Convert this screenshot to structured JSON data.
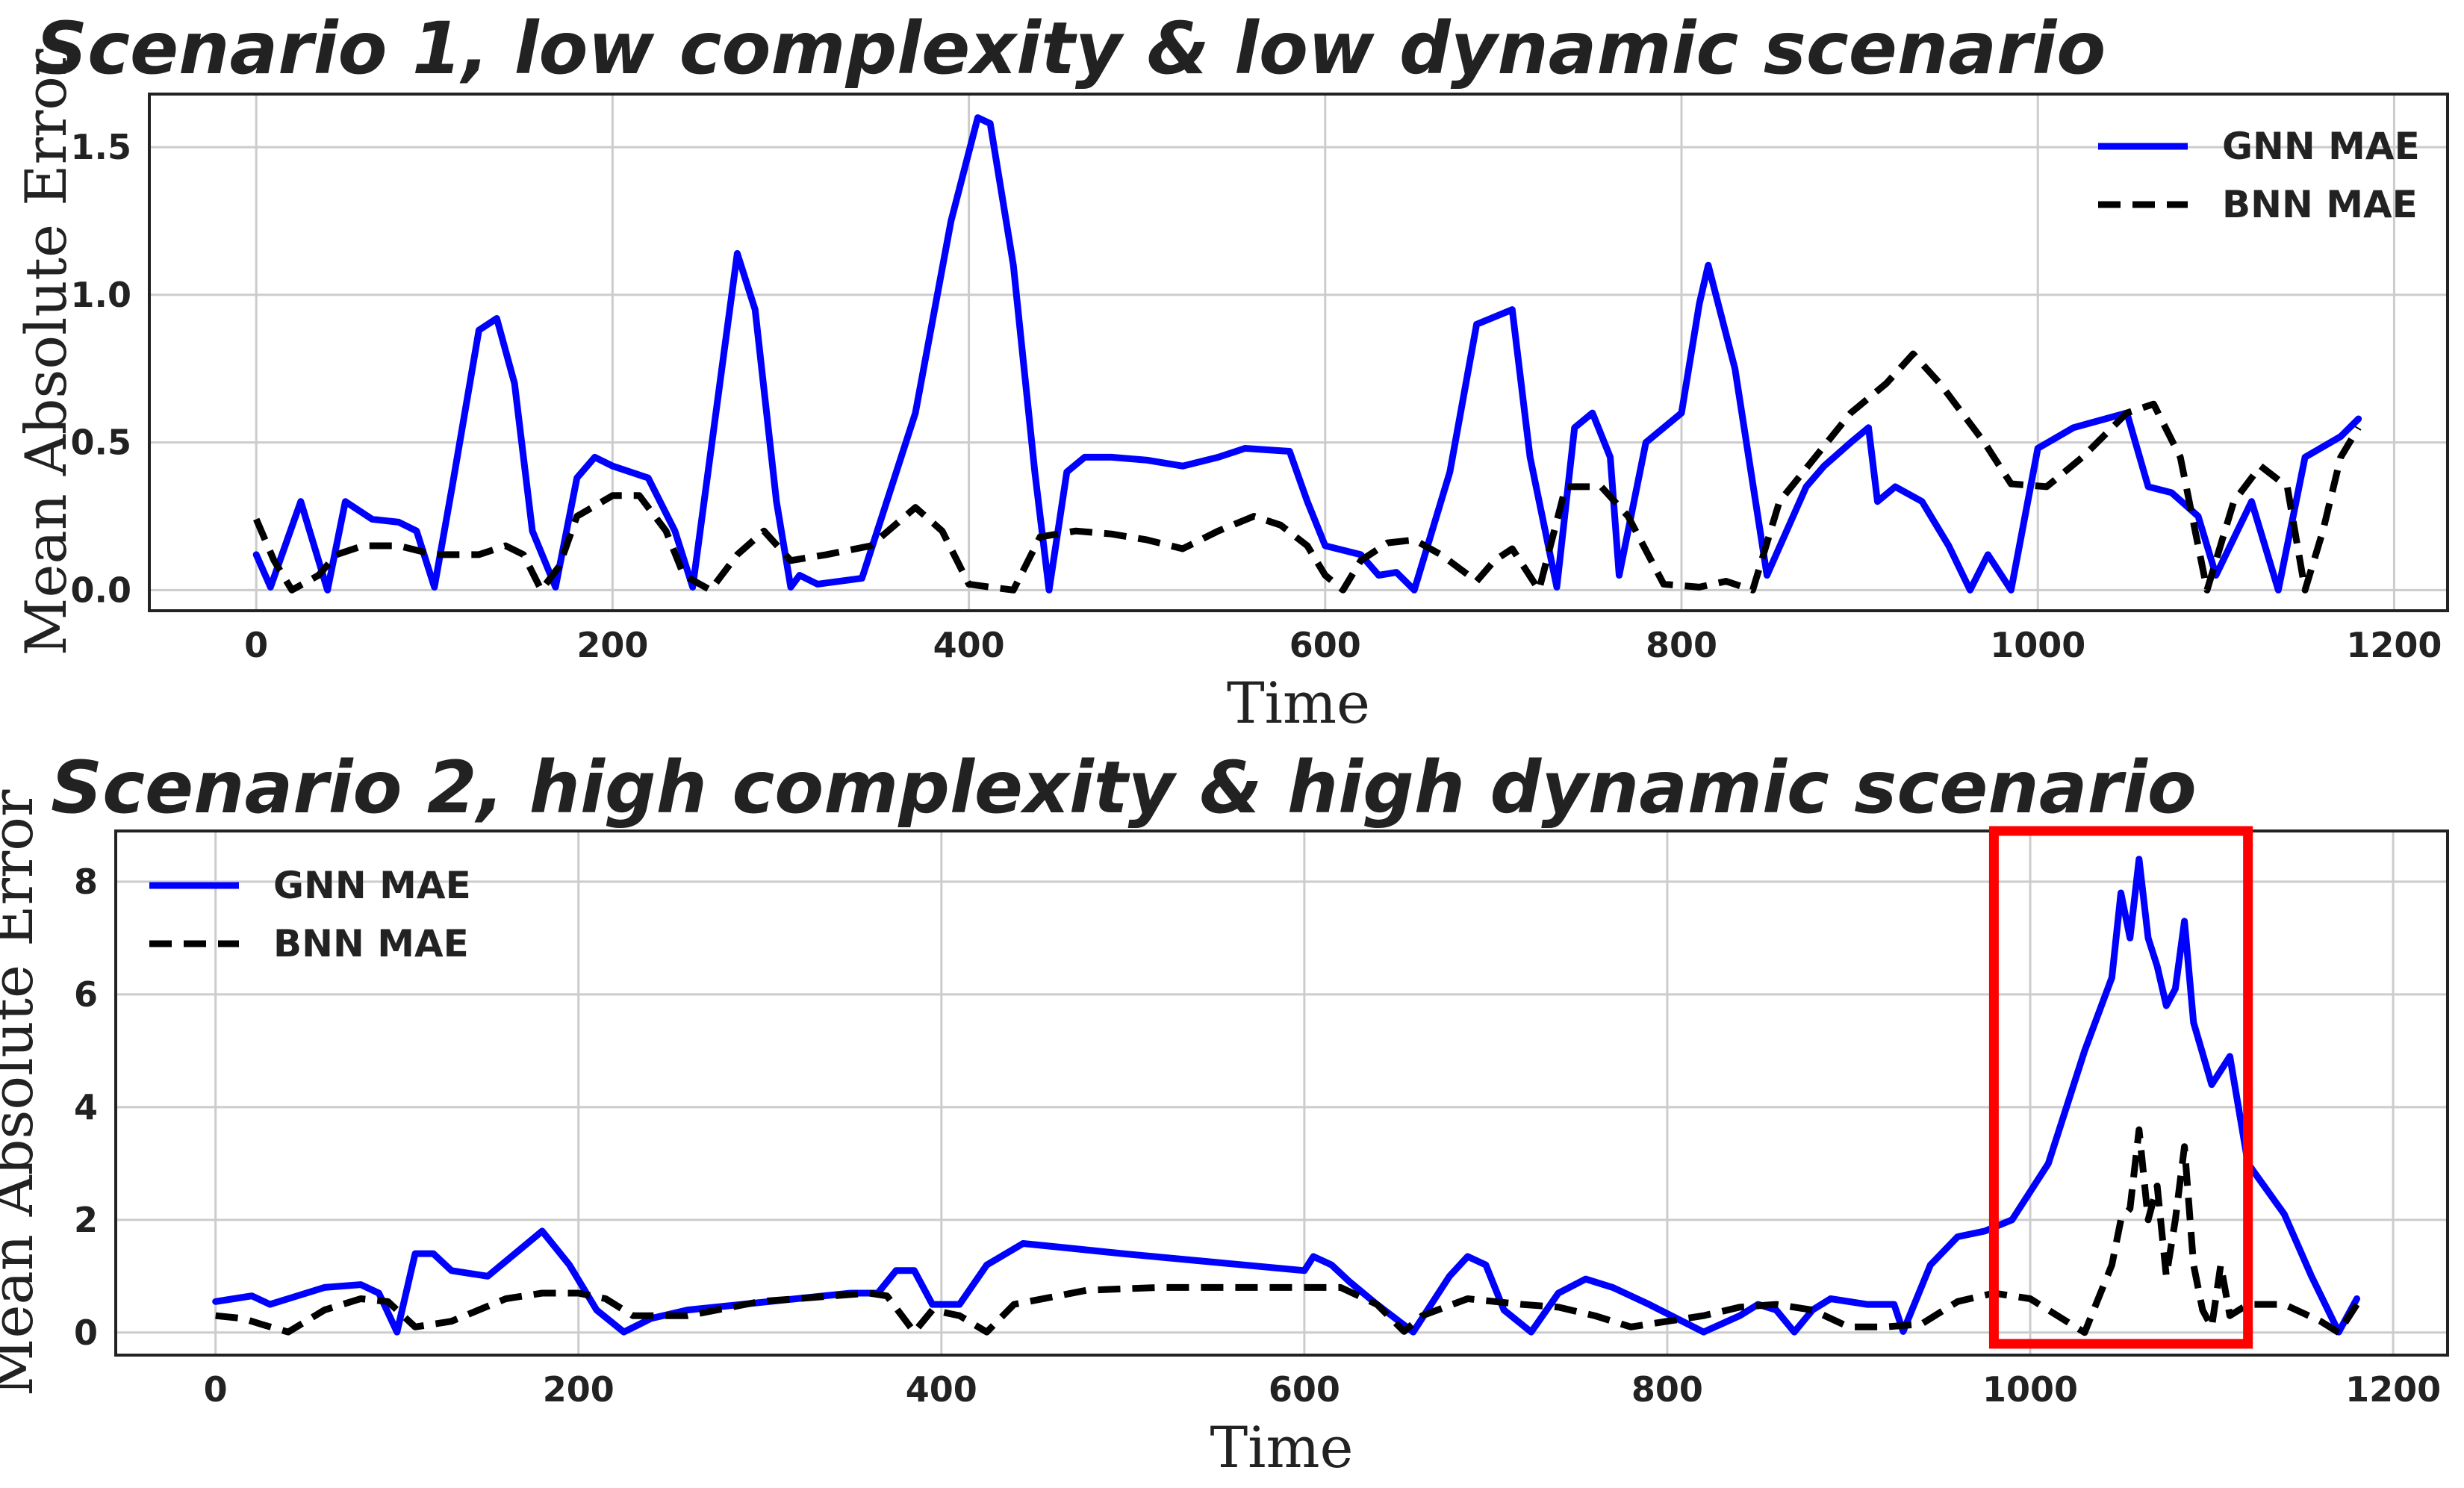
{
  "chart_data": [
    {
      "type": "line",
      "title": "Scenario 1, low complexity & low dynamic scenario",
      "xlabel": "Time",
      "ylabel": "Mean Absolute Error",
      "xlim": [
        -60,
        1230
      ],
      "ylim": [
        -0.07,
        1.68
      ],
      "xticks": [
        0,
        200,
        400,
        600,
        800,
        1000,
        1200
      ],
      "yticks": [
        0.0,
        0.5,
        1.0,
        1.5
      ],
      "ytick_labels": [
        "0.0",
        "0.5",
        "1.0",
        "1.5"
      ],
      "grid": true,
      "legend_position": "top-right",
      "series": [
        {
          "name": "GNN MAE",
          "color": "#0000ff",
          "style": "solid",
          "x": [
            0,
            8,
            25,
            40,
            50,
            65,
            80,
            90,
            100,
            110,
            125,
            135,
            145,
            155,
            168,
            180,
            190,
            200,
            220,
            235,
            245,
            258,
            270,
            280,
            292,
            300,
            305,
            315,
            340,
            370,
            390,
            405,
            412,
            425,
            437,
            445,
            455,
            465,
            480,
            500,
            520,
            540,
            555,
            580,
            590,
            600,
            620,
            630,
            640,
            650,
            670,
            685,
            705,
            715,
            730,
            740,
            750,
            760,
            765,
            780,
            800,
            810,
            815,
            830,
            848,
            870,
            880,
            895,
            905,
            910,
            920,
            935,
            950,
            962,
            972,
            985,
            1000,
            1020,
            1050,
            1062,
            1075,
            1090,
            1100,
            1120,
            1135,
            1150,
            1170,
            1180
          ],
          "y": [
            0.12,
            0.01,
            0.3,
            0.0,
            0.3,
            0.24,
            0.23,
            0.2,
            0.01,
            0.35,
            0.88,
            0.92,
            0.7,
            0.2,
            0.01,
            0.38,
            0.45,
            0.42,
            0.38,
            0.2,
            0.01,
            0.6,
            1.14,
            0.95,
            0.3,
            0.01,
            0.05,
            0.02,
            0.04,
            0.6,
            1.25,
            1.6,
            1.58,
            1.1,
            0.4,
            0.0,
            0.4,
            0.45,
            0.45,
            0.44,
            0.42,
            0.45,
            0.48,
            0.47,
            0.3,
            0.15,
            0.12,
            0.05,
            0.06,
            0.0,
            0.4,
            0.9,
            0.95,
            0.45,
            0.01,
            0.55,
            0.6,
            0.45,
            0.05,
            0.5,
            0.6,
            0.97,
            1.1,
            0.75,
            0.05,
            0.35,
            0.42,
            0.5,
            0.55,
            0.3,
            0.35,
            0.3,
            0.15,
            0.0,
            0.12,
            0.0,
            0.48,
            0.55,
            0.6,
            0.35,
            0.33,
            0.25,
            0.05,
            0.3,
            0.0,
            0.45,
            0.52,
            0.58
          ]
        },
        {
          "name": "BNN MAE",
          "color": "#000000",
          "style": "dashed",
          "x": [
            0,
            10,
            20,
            35,
            45,
            60,
            80,
            100,
            125,
            140,
            150,
            160,
            170,
            180,
            200,
            215,
            230,
            240,
            255,
            270,
            285,
            300,
            320,
            345,
            370,
            385,
            400,
            412,
            425,
            440,
            460,
            480,
            500,
            520,
            540,
            560,
            575,
            590,
            600,
            610,
            620,
            635,
            650,
            665,
            685,
            695,
            705,
            720,
            735,
            745,
            755,
            770,
            790,
            810,
            825,
            840,
            855,
            875,
            895,
            915,
            930,
            945,
            970,
            985,
            1005,
            1025,
            1050,
            1065,
            1080,
            1095,
            1110,
            1125,
            1140,
            1150,
            1160,
            1170,
            1180
          ],
          "y": [
            0.24,
            0.1,
            0.0,
            0.05,
            0.12,
            0.15,
            0.15,
            0.12,
            0.12,
            0.15,
            0.12,
            0.0,
            0.08,
            0.25,
            0.32,
            0.32,
            0.2,
            0.05,
            0.0,
            0.12,
            0.2,
            0.1,
            0.12,
            0.15,
            0.28,
            0.2,
            0.02,
            0.01,
            0.0,
            0.18,
            0.2,
            0.19,
            0.17,
            0.14,
            0.2,
            0.25,
            0.22,
            0.15,
            0.05,
            0.0,
            0.1,
            0.16,
            0.17,
            0.12,
            0.03,
            0.1,
            0.14,
            0.0,
            0.35,
            0.35,
            0.35,
            0.25,
            0.02,
            0.01,
            0.03,
            0.0,
            0.3,
            0.45,
            0.6,
            0.7,
            0.8,
            0.7,
            0.5,
            0.36,
            0.35,
            0.45,
            0.6,
            0.63,
            0.45,
            0.0,
            0.3,
            0.42,
            0.35,
            0.0,
            0.2,
            0.45,
            0.55
          ]
        }
      ]
    },
    {
      "type": "line",
      "title": "Scenario 2, high complexity & high dynamic scenario",
      "xlabel": "Time",
      "ylabel": "Mean Absolute Error",
      "xlim": [
        -55,
        1230
      ],
      "ylim": [
        -0.4,
        8.9
      ],
      "xticks": [
        0,
        200,
        400,
        600,
        800,
        1000,
        1200
      ],
      "yticks": [
        0,
        2,
        4,
        6,
        8
      ],
      "ytick_labels": [
        "0",
        "2",
        "4",
        "6",
        "8"
      ],
      "grid": true,
      "legend_position": "top-left",
      "highlight_box": {
        "x": [
          980,
          1120
        ],
        "y": [
          -0.2,
          8.9
        ],
        "color": "#ff0000"
      },
      "series": [
        {
          "name": "GNN MAE",
          "color": "#0000ff",
          "style": "solid",
          "x": [
            0,
            10,
            20,
            30,
            40,
            60,
            80,
            90,
            100,
            110,
            120,
            130,
            150,
            165,
            180,
            195,
            210,
            225,
            240,
            260,
            290,
            320,
            350,
            365,
            375,
            385,
            395,
            410,
            425,
            445,
            470,
            500,
            550,
            600,
            605,
            615,
            625,
            640,
            660,
            680,
            690,
            700,
            710,
            725,
            740,
            755,
            770,
            790,
            820,
            840,
            850,
            860,
            870,
            880,
            890,
            910,
            925,
            930,
            945,
            960,
            975,
            990,
            1010,
            1030,
            1045,
            1050,
            1055,
            1060,
            1065,
            1070,
            1075,
            1080,
            1085,
            1090,
            1100,
            1110,
            1120,
            1140,
            1155,
            1170,
            1180
          ],
          "y": [
            0.55,
            0.6,
            0.65,
            0.5,
            0.6,
            0.8,
            0.85,
            0.7,
            0.01,
            1.4,
            1.4,
            1.1,
            1.0,
            1.4,
            1.8,
            1.2,
            0.4,
            0.01,
            0.25,
            0.4,
            0.5,
            0.6,
            0.7,
            0.7,
            1.1,
            1.1,
            0.5,
            0.5,
            1.2,
            1.58,
            1.5,
            1.4,
            1.25,
            1.1,
            1.35,
            1.2,
            0.9,
            0.5,
            0.01,
            1.0,
            1.35,
            1.2,
            0.4,
            0.01,
            0.7,
            0.95,
            0.8,
            0.5,
            0.01,
            0.3,
            0.5,
            0.4,
            0.01,
            0.4,
            0.6,
            0.5,
            0.5,
            0.02,
            1.2,
            1.7,
            1.8,
            2.0,
            3.0,
            5.0,
            6.3,
            7.8,
            7.0,
            8.4,
            7.0,
            6.5,
            5.8,
            6.1,
            7.3,
            5.5,
            4.4,
            4.9,
            3.0,
            2.1,
            1.0,
            0.01,
            0.6
          ]
        },
        {
          "name": "BNN MAE",
          "color": "#000000",
          "style": "dashed",
          "x": [
            0,
            15,
            25,
            40,
            60,
            80,
            95,
            110,
            130,
            160,
            180,
            200,
            215,
            230,
            260,
            300,
            340,
            360,
            370,
            385,
            395,
            410,
            425,
            440,
            480,
            520,
            560,
            600,
            620,
            640,
            655,
            665,
            690,
            720,
            740,
            760,
            780,
            800,
            820,
            840,
            860,
            880,
            900,
            920,
            940,
            960,
            980,
            1000,
            1015,
            1030,
            1040,
            1045,
            1050,
            1055,
            1060,
            1065,
            1070,
            1075,
            1080,
            1085,
            1090,
            1095,
            1100,
            1105,
            1110,
            1120,
            1140,
            1160,
            1170,
            1180
          ],
          "y": [
            0.3,
            0.25,
            0.15,
            0.01,
            0.4,
            0.6,
            0.55,
            0.1,
            0.2,
            0.6,
            0.7,
            0.7,
            0.6,
            0.3,
            0.3,
            0.55,
            0.65,
            0.7,
            0.65,
            0.01,
            0.4,
            0.3,
            0.01,
            0.5,
            0.75,
            0.8,
            0.8,
            0.8,
            0.8,
            0.5,
            0.02,
            0.3,
            0.6,
            0.5,
            0.45,
            0.3,
            0.1,
            0.2,
            0.3,
            0.45,
            0.5,
            0.4,
            0.1,
            0.1,
            0.15,
            0.55,
            0.7,
            0.6,
            0.3,
            0.0,
            0.8,
            1.2,
            2.0,
            2.2,
            3.6,
            2.0,
            2.6,
            1.0,
            2.0,
            3.3,
            1.2,
            0.4,
            0.1,
            1.2,
            0.3,
            0.5,
            0.5,
            0.2,
            0.0,
            0.5
          ]
        }
      ]
    }
  ]
}
